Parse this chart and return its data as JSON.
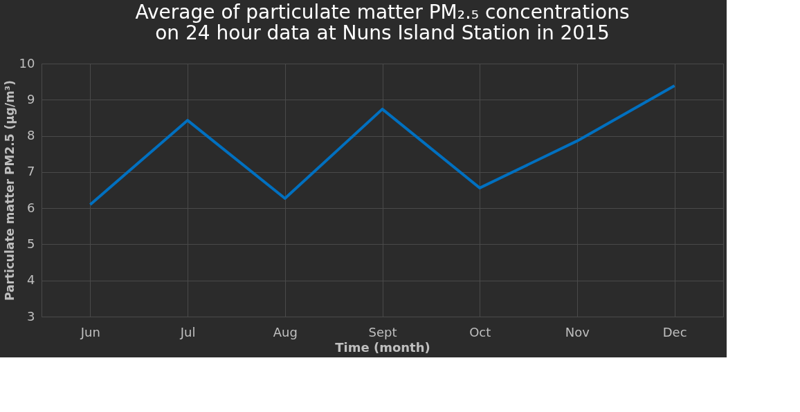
{
  "chart_data": {
    "type": "line",
    "title": "Average of particulate matter PM₂.₅ concentrations on 24 hour data at Nuns Island Station in 2015",
    "xlabel": "Time (month)",
    "ylabel": "Particulate matter PM2.5  (µg/m³)",
    "categories": [
      "Jun",
      "Jul",
      "Aug",
      "Sept",
      "Oct",
      "Nov",
      "Dec"
    ],
    "series": [
      {
        "color": "#0070c0",
        "values": [
          6.1,
          8.43,
          6.27,
          8.74,
          6.56,
          7.86,
          9.39
        ]
      }
    ],
    "ylim": [
      3,
      10
    ],
    "yticks": [
      3,
      4,
      5,
      6,
      7,
      8,
      9,
      10
    ],
    "grid": true,
    "marker": "none",
    "line_style": "solid"
  }
}
